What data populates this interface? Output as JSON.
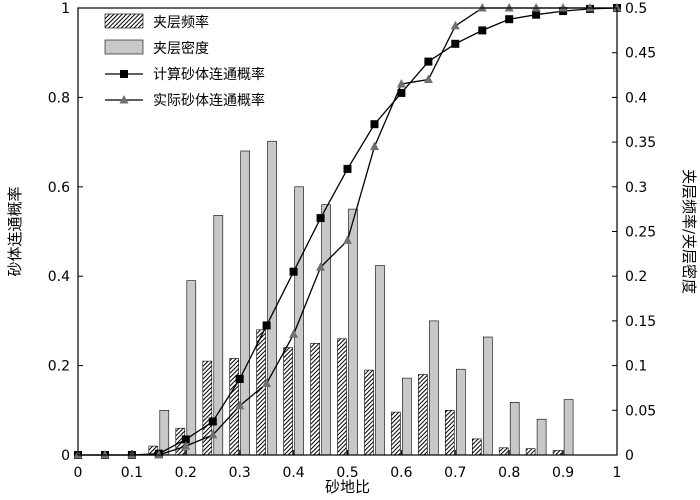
{
  "chart_data": {
    "type": "bar+line",
    "xlabel": "砂地比",
    "ylabel_left": "砂体连通概率",
    "ylabel_right": "夹层频率/夹层密度",
    "xlim": [
      0,
      1
    ],
    "ylim_left": [
      0,
      1
    ],
    "ylim_right": [
      0,
      0.5
    ],
    "xticks": [
      "0",
      "0.1",
      "0.2",
      "0.3",
      "0.4",
      "0.5",
      "0.6",
      "0.7",
      "0.8",
      "0.9",
      "1"
    ],
    "yticks_left": [
      "0",
      "0.2",
      "0.4",
      "0.6",
      "0.8",
      "1"
    ],
    "yticks_right": [
      "0",
      "0.05",
      "0.1",
      "0.15",
      "0.2",
      "0.25",
      "0.3",
      "0.35",
      "0.4",
      "0.45",
      "0.5"
    ],
    "legend": [
      "夹层频率",
      "夹层密度",
      "计算砂体连通概率",
      "实际砂体连通概率"
    ],
    "legend_position": "top-left",
    "bar_x": [
      0.15,
      0.2,
      0.25,
      0.3,
      0.35,
      0.4,
      0.45,
      0.5,
      0.55,
      0.6,
      0.65,
      0.7,
      0.75,
      0.8,
      0.85,
      0.9
    ],
    "series": [
      {
        "name": "夹层频率",
        "type": "bar",
        "axis": "right",
        "pattern": "hatched",
        "values": [
          0.01,
          0.03,
          0.105,
          0.108,
          0.14,
          0.12,
          0.125,
          0.13,
          0.095,
          0.048,
          0.09,
          0.05,
          0.018,
          0.008,
          0.007,
          0.005
        ]
      },
      {
        "name": "夹层密度",
        "type": "bar",
        "axis": "right",
        "pattern": "gray",
        "values": [
          0.05,
          0.195,
          0.268,
          0.34,
          0.351,
          0.3,
          0.28,
          0.275,
          0.212,
          0.086,
          0.15,
          0.096,
          0.132,
          0.059,
          0.04,
          0.062
        ]
      },
      {
        "name": "计算砂体连通概率",
        "type": "line",
        "axis": "left",
        "marker": "square",
        "x": [
          0,
          0.05,
          0.1,
          0.15,
          0.2,
          0.25,
          0.3,
          0.35,
          0.4,
          0.45,
          0.5,
          0.55,
          0.6,
          0.65,
          0.7,
          0.75,
          0.8,
          0.85,
          0.9,
          0.95,
          1.0
        ],
        "values": [
          0,
          0,
          0,
          0.003,
          0.035,
          0.075,
          0.17,
          0.29,
          0.41,
          0.53,
          0.64,
          0.74,
          0.81,
          0.88,
          0.92,
          0.95,
          0.975,
          0.985,
          0.993,
          0.998,
          1.0
        ]
      },
      {
        "name": "实际砂体连通概率",
        "type": "line",
        "axis": "left",
        "marker": "triangle",
        "x": [
          0,
          0.05,
          0.1,
          0.15,
          0.2,
          0.25,
          0.3,
          0.35,
          0.4,
          0.45,
          0.5,
          0.55,
          0.6,
          0.65,
          0.7,
          0.75,
          0.8,
          0.85,
          0.9,
          0.95,
          1.0
        ],
        "values": [
          0,
          0,
          0,
          0,
          0.02,
          0.045,
          0.11,
          0.16,
          0.27,
          0.42,
          0.48,
          0.69,
          0.83,
          0.84,
          0.96,
          1.0,
          1.0,
          1.0,
          1.0,
          1.0,
          1.0
        ]
      }
    ],
    "colors": {
      "hatch": "#000000",
      "gray_bar": "#c8c8c8",
      "line": "#000000",
      "triangle": "#707070"
    }
  }
}
